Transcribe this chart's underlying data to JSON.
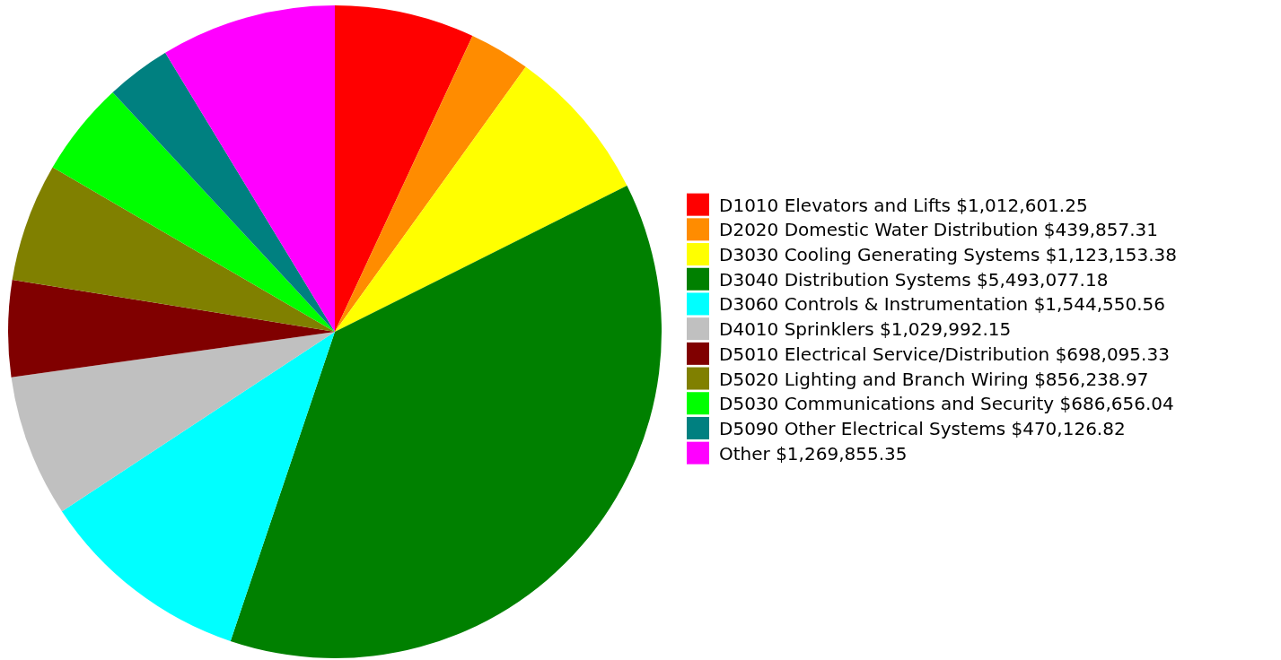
{
  "chart_data": {
    "type": "pie",
    "legend": "right",
    "categories": [
      "D1010 Elevators and Lifts",
      "D2020 Domestic Water Distribution",
      "D3030 Cooling Generating Systems",
      "D3040 Distribution Systems",
      "D3060 Controls & Instrumentation",
      "D4010 Sprinklers",
      "D5010 Electrical Service/Distribution",
      "D5020 Lighting and Branch Wiring",
      "D5030 Communications and Security",
      "D5090 Other Electrical Systems",
      "Other"
    ],
    "values": [
      1012601.25,
      439857.31,
      1123153.38,
      5493077.18,
      1544550.56,
      1029992.15,
      698095.33,
      856238.97,
      686656.04,
      470126.82,
      1269855.35
    ],
    "value_labels": [
      "$1,012,601.25",
      "$439,857.31",
      "$1,123,153.38",
      "$5,493,077.18",
      "$1,544,550.56",
      "$1,029,992.15",
      "$698,095.33",
      "$856,238.97",
      "$686,656.04",
      "$470,126.82",
      "$1,269,855.35"
    ],
    "colors": [
      "#ff0000",
      "#ff8c00",
      "#ffff00",
      "#008000",
      "#00ffff",
      "#c0c0c0",
      "#800000",
      "#808000",
      "#00ff00",
      "#008080",
      "#ff00ff"
    ]
  }
}
